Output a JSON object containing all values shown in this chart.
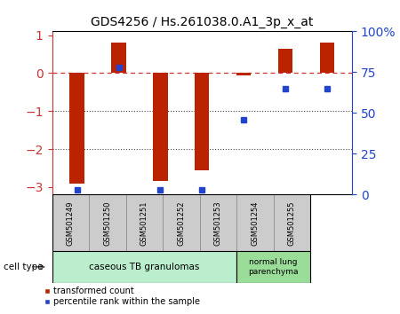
{
  "title": "GDS4256 / Hs.261038.0.A1_3p_x_at",
  "samples": [
    "GSM501249",
    "GSM501250",
    "GSM501251",
    "GSM501252",
    "GSM501253",
    "GSM501254",
    "GSM501255"
  ],
  "transformed_counts": [
    -2.9,
    0.8,
    -2.85,
    -2.55,
    -0.05,
    0.65,
    0.8
  ],
  "percentile_ranks": [
    3,
    78,
    3,
    3,
    46,
    65,
    65
  ],
  "ylim_left": [
    -3.2,
    1.1
  ],
  "ylim_right": [
    -4.267,
    100
  ],
  "yticks_left": [
    -3,
    -2,
    -1,
    0,
    1
  ],
  "yticks_right": [
    0,
    25,
    50,
    75,
    100
  ],
  "bar_color": "#bb2200",
  "dot_color": "#2244cc",
  "hline_color": "#cc3333",
  "dotline_color": "#444444",
  "group1_label": "caseous TB granulomas",
  "group2_label": "normal lung\nparenchyma",
  "group1_color": "#bbeecc",
  "group2_color": "#99dd99",
  "group1_count": 5,
  "group2_count": 2,
  "cell_type_label": "cell type",
  "legend_red_label": "transformed count",
  "legend_blue_label": "percentile rank within the sample",
  "sample_box_color": "#cccccc",
  "bar_width": 0.35
}
